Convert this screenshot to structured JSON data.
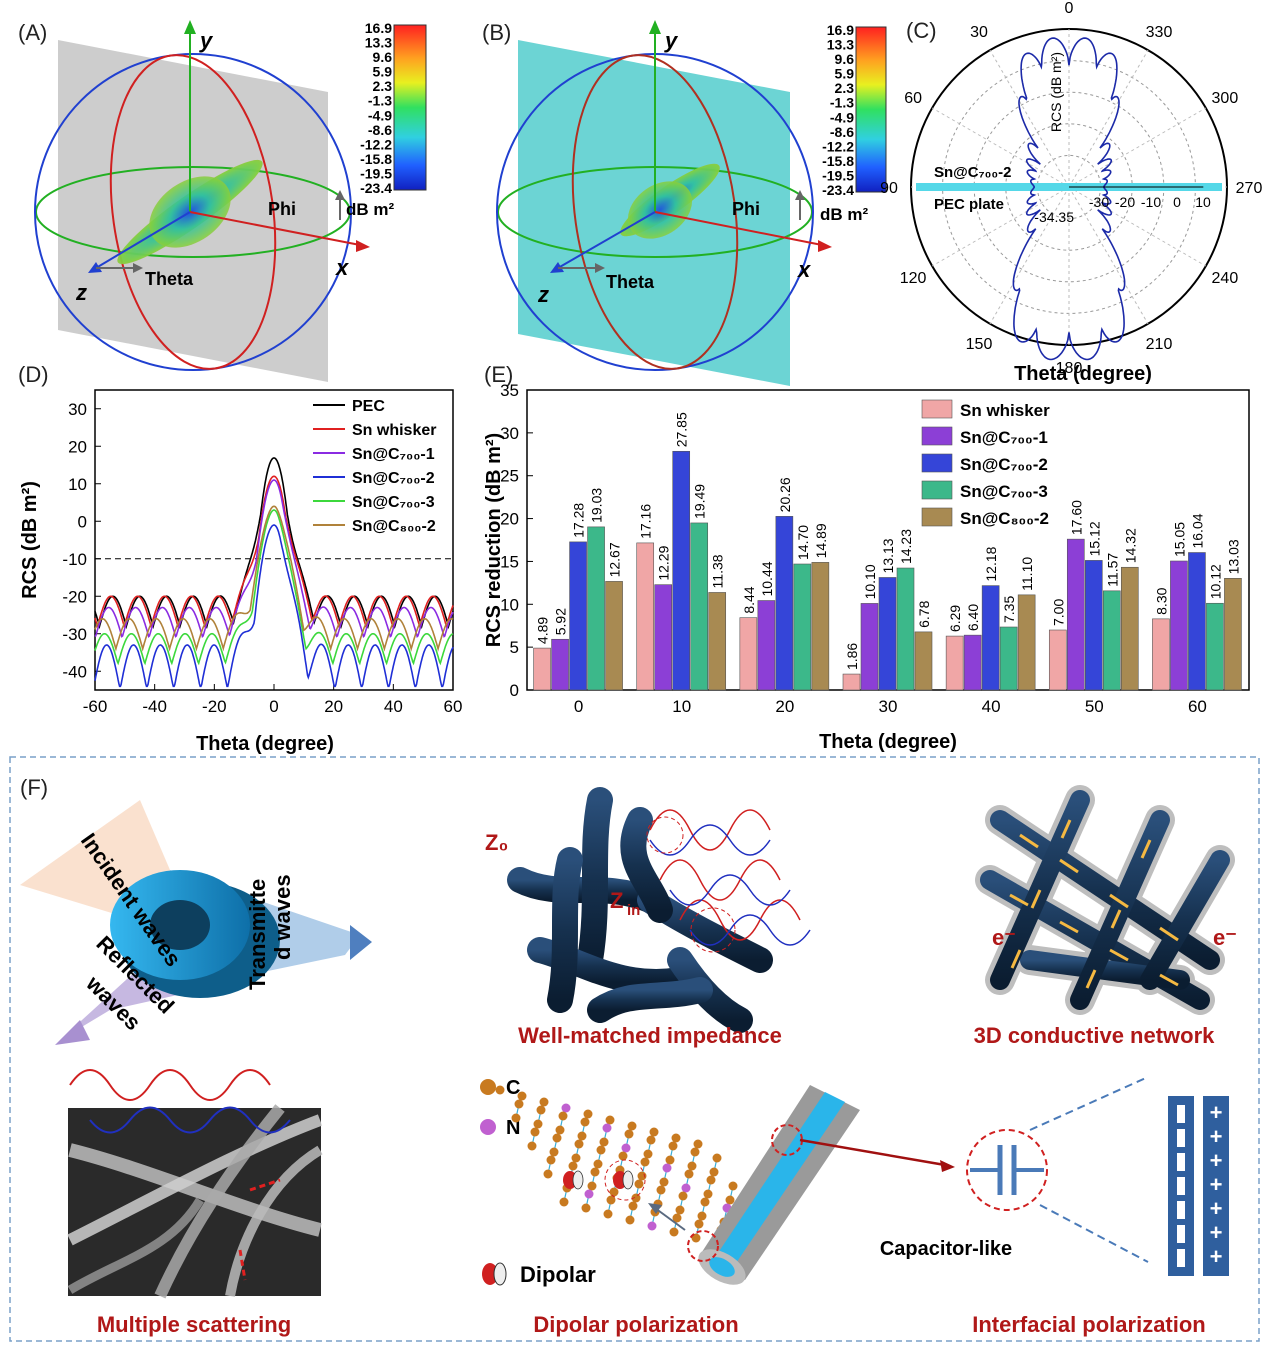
{
  "panels": {
    "A": {
      "label": "(A)",
      "colorbar": {
        "ticks": [
          "16.9",
          "13.3",
          "9.6",
          "5.9",
          "2.3",
          "-1.3",
          "-4.9",
          "-8.6",
          "-12.2",
          "-15.8",
          "-19.5",
          "-23.4"
        ],
        "unit": "dB m²"
      },
      "axes": {
        "x": "x",
        "y": "y",
        "z": "z",
        "phi": "Phi",
        "theta": "Theta"
      },
      "plate_color": "#c8c8c8"
    },
    "B": {
      "label": "(B)",
      "colorbar": {
        "ticks": [
          "16.9",
          "13.3",
          "9.6",
          "5.9",
          "2.3",
          "-1.3",
          "-4.9",
          "-8.6",
          "-12.2",
          "-15.8",
          "-19.5",
          "-23.4"
        ],
        "unit": "dB m²"
      },
      "axes": {
        "x": "x",
        "y": "y",
        "z": "z",
        "phi": "Phi",
        "theta": "Theta"
      },
      "plate_color": "#5ccfcf"
    },
    "C": {
      "label": "(C)",
      "angles": [
        "0",
        "30",
        "60",
        "90",
        "120",
        "150",
        "180",
        "210",
        "240",
        "270",
        "300",
        "330"
      ],
      "radial_label": "RCS (dB m²)",
      "radial_ticks": [
        "-30",
        "-20",
        "-10",
        "0",
        "10"
      ],
      "min_value": "-34.35",
      "legend": [
        "Sn@C₇₀₀-2",
        "PEC plate"
      ],
      "xlabel": "Theta (degree)"
    },
    "D": {
      "label": "(D)",
      "xlabel": "Theta (degree)",
      "ylabel": "RCS (dB m²)",
      "xticks": [
        "-60",
        "-40",
        "-20",
        "0",
        "20",
        "40",
        "60"
      ],
      "yticks": [
        "30",
        "20",
        "10",
        "0",
        "-10",
        "-20",
        "-30",
        "-40"
      ]
    },
    "E": {
      "label": "(E)",
      "xlabel": "Theta (degree)",
      "ylabel": "RCS reduction (dB m²)",
      "xticks": [
        "0",
        "10",
        "20",
        "30",
        "40",
        "50",
        "60"
      ],
      "yticks": [
        "35",
        "30",
        "25",
        "20",
        "15",
        "10",
        "5",
        "0"
      ]
    },
    "F": {
      "label": "(F)",
      "incident": "Incident waves",
      "transmitted_1": "Transmitte",
      "transmitted_2": "d waves",
      "reflected_1": "Reflected",
      "reflected_2": "waves",
      "z0": "Z₀",
      "zin": "Z",
      "zin_sub": "in",
      "electron": "e⁻",
      "atom_c": "C",
      "atom_n": "N",
      "dipolar_legend": "Dipolar",
      "capacitor": "Capacitor-like",
      "captions": [
        "Multiple scattering",
        "Well-matched impedance",
        "3D conductive network",
        "Dipolar polarization",
        "Interfacial  polarization"
      ]
    }
  },
  "chart_data": [
    {
      "type": "line",
      "panel": "D",
      "xlabel": "Theta (degree)",
      "ylabel": "RCS (dB m²)",
      "xlim": [
        -60,
        60
      ],
      "ylim": [
        -45,
        35
      ],
      "reference_line": -10,
      "series": [
        {
          "name": "PEC",
          "color": "#000000",
          "peak": 16.9,
          "floor": -22
        },
        {
          "name": "Sn whisker",
          "color": "#e02020",
          "peak": 12,
          "floor": -22
        },
        {
          "name": "Sn@C₇₀₀-1",
          "color": "#8a2be2",
          "peak": 11,
          "floor": -25
        },
        {
          "name": "Sn@C₇₀₀-2",
          "color": "#1f2fd6",
          "peak": -1,
          "floor": -35
        },
        {
          "name": "Sn@C₇₀₀-3",
          "color": "#3cd83c",
          "peak": 3,
          "floor": -32
        },
        {
          "name": "Sn@C₈₀₀-2",
          "color": "#b0823a",
          "peak": 4,
          "floor": -28
        }
      ]
    },
    {
      "type": "bar",
      "panel": "E",
      "xlabel": "Theta (degree)",
      "ylabel": "RCS reduction (dB m²)",
      "ylim": [
        0,
        35
      ],
      "categories": [
        "0",
        "10",
        "20",
        "30",
        "40",
        "50",
        "60"
      ],
      "series": [
        {
          "name": "Sn whisker",
          "color": "#f0a6a6",
          "values": [
            4.89,
            17.16,
            8.44,
            1.86,
            6.29,
            7.0,
            8.3
          ],
          "labels": [
            "4.89",
            "17.16",
            "8.44",
            "1.86",
            "6.29",
            "7.00",
            "8.30"
          ]
        },
        {
          "name": "Sn@C₇₀₀-1",
          "color": "#8c3fd6",
          "values": [
            5.92,
            12.29,
            10.44,
            10.1,
            6.4,
            17.6,
            15.05
          ],
          "labels": [
            "5.92",
            "12.29",
            "10.44",
            "10.10",
            "6.40",
            "17.60",
            "15.05"
          ]
        },
        {
          "name": "Sn@C₇₀₀-2",
          "color": "#3545d8",
          "values": [
            17.28,
            27.85,
            20.26,
            13.13,
            12.18,
            15.12,
            16.04
          ],
          "labels": [
            "17.28",
            "27.85",
            "20.26",
            "13.13",
            "12.18",
            "15.12",
            "16.04"
          ]
        },
        {
          "name": "Sn@C₇₀₀-3",
          "color": "#3cb88a",
          "values": [
            19.03,
            19.49,
            14.7,
            14.23,
            7.35,
            11.57,
            10.12
          ],
          "labels": [
            "19.03",
            "19.49",
            "14.70",
            "14.23",
            "7.35",
            "11.57",
            "10.12"
          ]
        },
        {
          "name": "Sn@C₈₀₀-2",
          "color": "#a88a52",
          "values": [
            12.67,
            11.38,
            14.89,
            6.78,
            11.1,
            14.32,
            13.03
          ],
          "labels": [
            "12.67",
            "11.38",
            "14.89",
            "6.78",
            "11.10",
            "14.32",
            "13.03"
          ]
        }
      ]
    }
  ]
}
